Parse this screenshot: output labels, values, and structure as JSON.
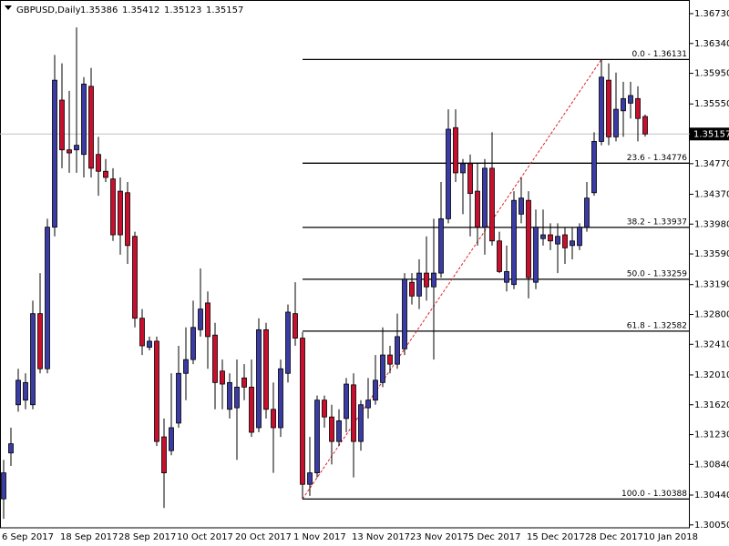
{
  "chart_data": {
    "type": "candlestick",
    "title": "GBPUSD,Daily",
    "up_color": "#3b3ba6",
    "down_color": "#c8102e",
    "fib_color": "#000000",
    "trend_color": "#e0202a",
    "ylim": [
      1.30012,
      1.36908
    ],
    "yticks": [
      {
        "value": 1.3673,
        "label": "1.36730"
      },
      {
        "value": 1.3634,
        "label": "1.36340"
      },
      {
        "value": 1.3595,
        "label": "1.35950"
      },
      {
        "value": 1.3555,
        "label": "1.35550"
      },
      {
        "value": 1.3516,
        "label": "1.35160"
      },
      {
        "value": 1.3477,
        "label": "1.34770"
      },
      {
        "value": 1.3437,
        "label": "1.34370"
      },
      {
        "value": 1.3398,
        "label": "1.33980"
      },
      {
        "value": 1.3359,
        "label": "1.33590"
      },
      {
        "value": 1.3319,
        "label": "1.33190"
      },
      {
        "value": 1.328,
        "label": "1.32800"
      },
      {
        "value": 1.3241,
        "label": "1.32410"
      },
      {
        "value": 1.3201,
        "label": "1.32010"
      },
      {
        "value": 1.3162,
        "label": "1.31620"
      },
      {
        "value": 1.3123,
        "label": "1.31230"
      },
      {
        "value": 1.3084,
        "label": "1.30840"
      },
      {
        "value": 1.3044,
        "label": "1.30440"
      },
      {
        "value": 1.3005,
        "label": "1.30050"
      }
    ],
    "categories": [
      "6 Sep 2017",
      null,
      null,
      null,
      null,
      null,
      null,
      null,
      "18 Sep 2017",
      null,
      null,
      null,
      null,
      null,
      null,
      null,
      "28 Sep 2017",
      null,
      null,
      null,
      null,
      null,
      null,
      null,
      "10 Oct 2017",
      null,
      null,
      null,
      null,
      null,
      null,
      null,
      "20 Oct 2017",
      null,
      null,
      null,
      null,
      null,
      null,
      null,
      "1 Nov 2017",
      null,
      null,
      null,
      null,
      null,
      null,
      null,
      "13 Nov 2017",
      null,
      null,
      null,
      null,
      null,
      null,
      null,
      "23 Nov 2017",
      null,
      null,
      null,
      null,
      null,
      null,
      null,
      "5 Dec 2017",
      null,
      null,
      null,
      null,
      null,
      null,
      null,
      "15 Dec 2017",
      null,
      null,
      null,
      null,
      null,
      null,
      null,
      "28 Dec 2017",
      null,
      null,
      null,
      null,
      null,
      null,
      null,
      "10 Jan 2018"
    ],
    "open": [
      1.3039,
      1.3099,
      1.3162,
      1.3168,
      1.3162,
      1.3281,
      1.3209,
      1.3394,
      1.356,
      1.3495,
      1.3495,
      1.3489,
      1.3578,
      1.3489,
      1.3467,
      1.3457,
      1.3441,
      1.3439,
      1.3382,
      1.3275,
      1.3237,
      1.3245,
      1.312,
      1.3102,
      1.3138,
      1.3203,
      1.3221,
      1.326,
      1.3295,
      1.3253,
      1.3206,
      1.3156,
      1.3158,
      1.3197,
      1.3185,
      1.3132,
      1.326,
      1.3156,
      1.3132,
      1.3203,
      1.3281,
      1.3249,
      1.3058,
      1.3073,
      1.3168,
      1.3146,
      1.3114,
      1.3144,
      1.3188,
      1.3114,
      1.3158,
      1.3168,
      1.3191,
      1.3227,
      1.3215,
      1.3235,
      1.3322,
      1.3304,
      1.3334,
      1.3316,
      1.3334,
      1.3405,
      1.3524,
      1.3465,
      1.3477,
      1.3441,
      1.3394,
      1.3471,
      1.3376,
      1.3322,
      1.3319,
      1.3411,
      1.3429,
      1.3322,
      1.3379,
      1.3384,
      1.3372,
      1.3384,
      1.337,
      1.337,
      1.3394,
      1.3439,
      1.3506,
      1.3586,
      1.3512,
      1.3546,
      1.3556,
      1.3562,
      1.35386
    ],
    "high": [
      1.309,
      1.3132,
      1.3209,
      1.3203,
      1.3298,
      1.3334,
      1.3405,
      1.3619,
      1.3608,
      1.3572,
      1.3655,
      1.359,
      1.3602,
      1.3512,
      1.3483,
      1.3471,
      1.3459,
      1.3453,
      1.3388,
      1.3287,
      1.3251,
      1.3251,
      1.3144,
      1.3203,
      1.3239,
      1.3263,
      1.3298,
      1.334,
      1.331,
      1.3269,
      1.3221,
      1.3203,
      1.3221,
      1.3215,
      1.3221,
      1.3275,
      1.3269,
      1.3191,
      1.3221,
      1.3293,
      1.3322,
      1.3257,
      1.312,
      1.3174,
      1.3174,
      1.3162,
      1.3156,
      1.3197,
      1.3203,
      1.3168,
      1.3197,
      1.3227,
      1.3263,
      1.3239,
      1.3281,
      1.3334,
      1.3334,
      1.3352,
      1.3382,
      1.3405,
      1.3453,
      1.3548,
      1.3548,
      1.3483,
      1.3489,
      1.3477,
      1.3483,
      1.3518,
      1.3388,
      1.337,
      1.3441,
      1.3459,
      1.3441,
      1.3417,
      1.3417,
      1.3399,
      1.3399,
      1.3394,
      1.3394,
      1.3399,
      1.3453,
      1.3518,
      1.36131,
      1.3608,
      1.3596,
      1.3584,
      1.3584,
      1.3578,
      1.35412
    ],
    "low": [
      1.3013,
      1.3082,
      1.3153,
      1.3156,
      1.3156,
      1.3203,
      1.3203,
      1.3382,
      1.3471,
      1.3465,
      1.3465,
      1.3459,
      1.3459,
      1.3435,
      1.3453,
      1.3376,
      1.3358,
      1.3346,
      1.3263,
      1.3227,
      1.3233,
      1.3108,
      1.3027,
      1.3096,
      1.3132,
      1.3168,
      1.3215,
      1.3251,
      1.3209,
      1.3156,
      1.3156,
      1.3144,
      1.309,
      1.3168,
      1.312,
      1.3126,
      1.3144,
      1.3073,
      1.312,
      1.3191,
      1.3239,
      1.30388,
      1.3043,
      1.3067,
      1.3132,
      1.3084,
      1.3108,
      1.3126,
      1.3067,
      1.3102,
      1.3144,
      1.3162,
      1.3185,
      1.3203,
      1.3209,
      1.3227,
      1.3293,
      1.3287,
      1.3298,
      1.3221,
      1.3328,
      1.3399,
      1.3453,
      1.3411,
      1.3382,
      1.337,
      1.3358,
      1.337,
      1.3334,
      1.331,
      1.3313,
      1.3399,
      1.3301,
      1.3313,
      1.337,
      1.3364,
      1.3334,
      1.3346,
      1.3352,
      1.3364,
      1.3388,
      1.3435,
      1.3501,
      1.3501,
      1.3506,
      1.3512,
      1.3536,
      1.3506,
      1.35123
    ],
    "close": [
      1.3073,
      1.3111,
      1.3194,
      1.3191,
      1.3281,
      1.3209,
      1.3394,
      1.3586,
      1.3495,
      1.3491,
      1.3501,
      1.3581,
      1.3471,
      1.3467,
      1.3459,
      1.3384,
      1.3384,
      1.337,
      1.3275,
      1.3239,
      1.3245,
      1.3114,
      1.3073,
      1.3132,
      1.3203,
      1.3221,
      1.3263,
      1.3287,
      1.3251,
      1.3191,
      1.3189,
      1.3191,
      1.3185,
      1.3185,
      1.3126,
      1.326,
      1.3156,
      1.3132,
      1.3209,
      1.3283,
      1.3249,
      1.3058,
      1.3073,
      1.3168,
      1.3146,
      1.3114,
      1.3141,
      1.3189,
      1.3114,
      1.3162,
      1.3168,
      1.3194,
      1.3227,
      1.3215,
      1.3251,
      1.3326,
      1.3304,
      1.3334,
      1.3316,
      1.3334,
      1.3405,
      1.3522,
      1.3465,
      1.3477,
      1.3438,
      1.3394,
      1.3471,
      1.3376,
      1.3336,
      1.3336,
      1.3429,
      1.3432,
      1.3328,
      1.3394,
      1.3384,
      1.3376,
      1.3382,
      1.3367,
      1.3376,
      1.3394,
      1.3432,
      1.3506,
      1.359,
      1.3512,
      1.3548,
      1.3562,
      1.3566,
      1.3536,
      1.35157
    ],
    "fib_levels": [
      {
        "value": 1.36131,
        "label": "0.0 - 1.36131"
      },
      {
        "value": 1.34776,
        "label": "23.6 - 1.34776"
      },
      {
        "value": 1.33937,
        "label": "38.2 - 1.33937"
      },
      {
        "value": 1.33259,
        "label": "50.0 - 1.33259"
      },
      {
        "value": 1.32582,
        "label": "61.8 - 1.32582"
      },
      {
        "value": 1.30388,
        "label": "100.0 - 1.30388"
      }
    ],
    "fib_start_index": 41,
    "fib_end_index": 82
  }
}
